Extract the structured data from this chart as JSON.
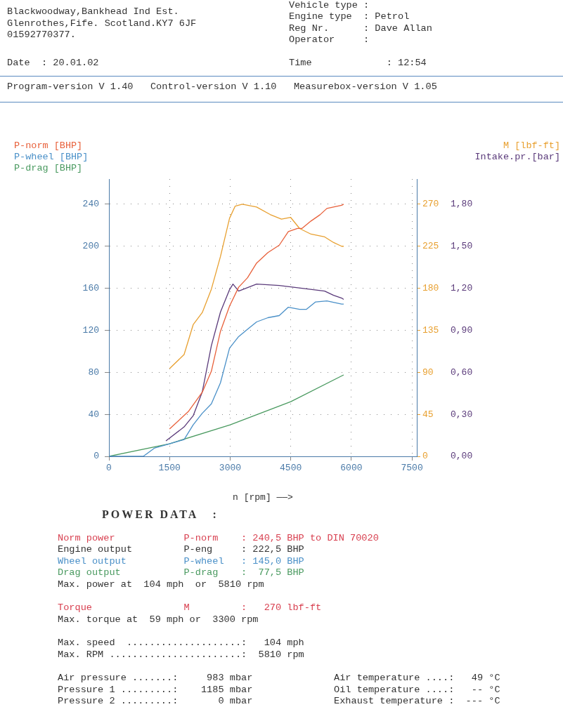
{
  "chart_data": {
    "type": "line",
    "xlabel": "n [rpm] ——>",
    "xlim": [
      0,
      7620
    ],
    "xticks": [
      0,
      1500,
      3000,
      4500,
      6000,
      7500
    ],
    "ylim": [
      0,
      264
    ],
    "yticks": [
      0,
      40,
      80,
      120,
      160,
      200,
      240
    ],
    "y2lim": [
      0,
      297
    ],
    "y2ticks": [
      0,
      45,
      90,
      135,
      180,
      225,
      270
    ],
    "y3lim": [
      0,
      1.98
    ],
    "y3ticks": [
      {
        "value": 0,
        "label": "0,00"
      },
      {
        "value": 0.3,
        "label": "0,30"
      },
      {
        "value": 0.6,
        "label": "0,60"
      },
      {
        "value": 0.9,
        "label": "0,90"
      },
      {
        "value": 1.2,
        "label": "1,20"
      },
      {
        "value": 1.5,
        "label": "1,50"
      },
      {
        "value": 1.8,
        "label": "1,80"
      }
    ],
    "grid": true,
    "legend": "top",
    "marker": "none",
    "line_style": "solid",
    "series": [
      {
        "name": "P-norm [BHP]",
        "color": "#e8603a",
        "axis": "y",
        "x": [
          1500,
          1973,
          2310,
          2535,
          2760,
          2985,
          3210,
          3430,
          3655,
          3935,
          4215,
          4440,
          4665,
          4780,
          5000,
          5225,
          5395,
          5760,
          5810
        ],
        "values": [
          26,
          43,
          61,
          81,
          119,
          143,
          161,
          170,
          184,
          194,
          201,
          214,
          217,
          217,
          224,
          230,
          236,
          239,
          240
        ]
      },
      {
        "name": "P-wheel [BHP]",
        "color": "#4a90c8",
        "axis": "y",
        "x": [
          0,
          850,
          1133,
          1500,
          1860,
          2085,
          2310,
          2535,
          2760,
          2985,
          3210,
          3430,
          3655,
          3935,
          4215,
          4440,
          4720,
          4890,
          5115,
          5395,
          5760,
          5810
        ],
        "values": [
          0,
          0,
          8,
          12,
          16,
          30,
          41,
          50,
          70,
          103,
          114,
          121,
          128,
          132,
          134,
          142,
          140,
          140,
          147,
          148,
          145,
          145
        ]
      },
      {
        "name": "P-drag [BHP]",
        "color": "#4a9a60",
        "axis": "y",
        "x": [
          0,
          1500,
          3000,
          4500,
          5810
        ],
        "values": [
          0,
          12,
          30,
          52,
          77.5
        ]
      },
      {
        "name": "M [lbf-ft]",
        "color": "#e8a030",
        "axis": "y2",
        "x": [
          1500,
          1860,
          2085,
          2310,
          2535,
          2760,
          2985,
          3125,
          3300,
          3655,
          3990,
          4270,
          4495,
          4720,
          5000,
          5340,
          5560,
          5760,
          5810
        ],
        "values": [
          94,
          109,
          141,
          154,
          179,
          214,
          255,
          268,
          270,
          267,
          259,
          254,
          256,
          244,
          238,
          235,
          229,
          225,
          225
        ]
      },
      {
        "name": "Intake.pr.[bar]",
        "color": "#5a3a7a",
        "axis": "y3",
        "x": [
          1410,
          1860,
          2085,
          2310,
          2535,
          2760,
          2985,
          3070,
          3210,
          3655,
          4215,
          4780,
          5340,
          5560,
          5760,
          5810
        ],
        "values": [
          0.11,
          0.21,
          0.29,
          0.46,
          0.79,
          1.03,
          1.19,
          1.23,
          1.18,
          1.23,
          1.22,
          1.2,
          1.18,
          1.15,
          1.13,
          1.12
        ]
      }
    ],
    "annotations": [
      "Blackwoodway,Bankhead Ind Est.",
      "Glenrothes,Fife. Scotland.KY7 6JF",
      "01592770377.",
      "Vehicle type :",
      "Engine type  : Petrol",
      "Reg Nr.      : Dave Allan",
      "Operator     :",
      "Date  : 20.01.02",
      "Time             : 12:54",
      "Program-version V 1.40   Control-version V 1.10   Measurebox-version V 1.05",
      "POWER DATA   :",
      "Norm power            P-norm    : 240,5 BHP to DIN 70020",
      "Engine output         P-eng     : 222,5 BHP",
      "Wheel output          P-wheel   : 145,0 BHP",
      "Drag output           P-drag    :  77,5 BHP",
      "Max. power at  104 mph  or  5810 rpm",
      "Torque                M         :   270 lbf-ft",
      "Max. torque at  59 mph or  3300 rpm",
      "Max. speed  ....................:   104 mph",
      "Max. RPM .......................:  5810 rpm",
      "Air pressure .......:     983 mbar",
      "Air temperature ....:   49 °C",
      "Pressure 1 .........:    1185 mbar",
      "Oil temperature ....:   -- °C",
      "Pressure 2 .........:       0 mbar",
      "Exhaust temperature :  --- °C"
    ]
  }
}
